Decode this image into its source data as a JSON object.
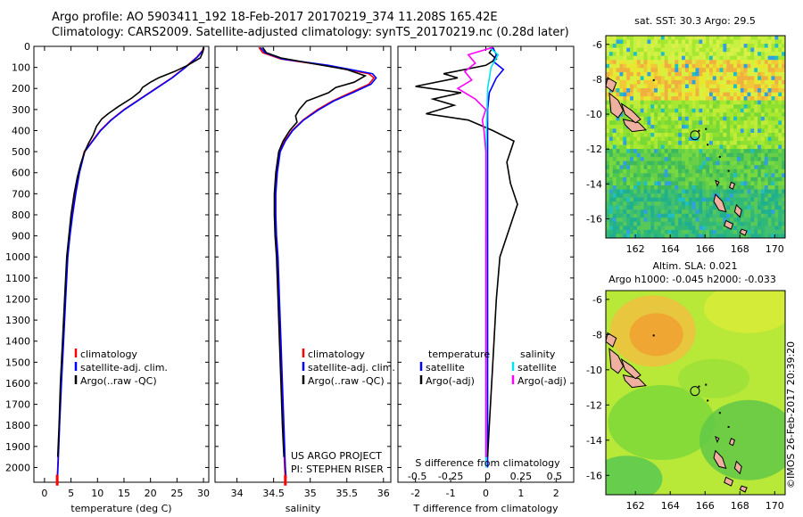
{
  "header": {
    "title_line1": "Argo profile: AO 5903411_192 18-Feb-2017 20170219_374 11.208S 165.42E",
    "title_line2": "Climatology: CARS2009. Satellite-adjusted climatology: synTS_20170219.nc (0.28d later)"
  },
  "stamp": "©IMOS 26-Feb-2017 20:39:20",
  "colors": {
    "climatology": "#ff0000",
    "satellite": "#0000ff",
    "argo": "#000000",
    "salinity_satellite": "#00e5ee",
    "salinity_argo": "#ff00ff"
  },
  "chart_data": [
    {
      "type": "line",
      "xlabel": "temperature (deg C)",
      "xlim": [
        -2,
        31
      ],
      "xticks": [
        0,
        5,
        10,
        15,
        20,
        25,
        30
      ],
      "ylim": [
        2070,
        0
      ],
      "yticks": [
        0,
        100,
        200,
        300,
        400,
        500,
        600,
        700,
        800,
        900,
        1000,
        1100,
        1200,
        1300,
        1400,
        1500,
        1600,
        1700,
        1800,
        1900,
        2000
      ],
      "legend": [
        "climatology",
        "satellite-adj. clim.",
        "Argo(..raw -QC)"
      ],
      "legend_placement": "lower-left",
      "series": [
        {
          "name": "climatology",
          "color": "climatology",
          "points": [
            [
              30,
              5
            ],
            [
              29.8,
              20
            ],
            [
              28.8,
              50
            ],
            [
              26.5,
              100
            ],
            [
              24,
              150
            ],
            [
              21,
              200
            ],
            [
              18,
              250
            ],
            [
              15,
              300
            ],
            [
              12.5,
              350
            ],
            [
              10.5,
              400
            ],
            [
              9,
              450
            ],
            [
              7.5,
              500
            ],
            [
              6.5,
              600
            ],
            [
              5.8,
              700
            ],
            [
              5.2,
              800
            ],
            [
              4.7,
              900
            ],
            [
              4.3,
              1000
            ],
            [
              3.9,
              1200
            ],
            [
              3.5,
              1400
            ],
            [
              3.1,
              1600
            ],
            [
              2.8,
              1800
            ],
            [
              2.5,
              2000
            ],
            [
              2.4,
              2050
            ]
          ]
        },
        {
          "name": "satellite-adj. clim.",
          "color": "satellite",
          "points": [
            [
              30.1,
              5
            ],
            [
              29.9,
              20
            ],
            [
              28.9,
              50
            ],
            [
              26.6,
              100
            ],
            [
              24.1,
              150
            ],
            [
              21.1,
              200
            ],
            [
              18.1,
              250
            ],
            [
              15.1,
              300
            ],
            [
              12.6,
              350
            ],
            [
              10.6,
              400
            ],
            [
              9.1,
              450
            ],
            [
              7.6,
              500
            ],
            [
              6.6,
              600
            ],
            [
              5.9,
              700
            ],
            [
              5.3,
              800
            ],
            [
              4.8,
              900
            ],
            [
              4.4,
              1000
            ],
            [
              4.0,
              1200
            ],
            [
              3.6,
              1400
            ],
            [
              3.2,
              1600
            ],
            [
              2.85,
              1800
            ],
            [
              2.55,
              2000
            ],
            [
              2.45,
              2050
            ]
          ]
        },
        {
          "name": "Argo(..raw -QC)",
          "color": "argo",
          "points": [
            [
              30,
              5
            ],
            [
              29.9,
              25
            ],
            [
              29.4,
              55
            ],
            [
              27,
              90
            ],
            [
              24.5,
              120
            ],
            [
              21.5,
              150
            ],
            [
              20,
              170
            ],
            [
              18.5,
              195
            ],
            [
              18,
              215
            ],
            [
              16.5,
              245
            ],
            [
              14,
              285
            ],
            [
              12,
              320
            ],
            [
              10.8,
              345
            ],
            [
              9.8,
              380
            ],
            [
              9.2,
              420
            ],
            [
              8.3,
              460
            ],
            [
              7.6,
              500
            ],
            [
              6.8,
              560
            ],
            [
              6.2,
              620
            ],
            [
              5.6,
              700
            ],
            [
              5.0,
              800
            ],
            [
              4.6,
              900
            ],
            [
              4.2,
              1000
            ],
            [
              3.8,
              1200
            ],
            [
              3.4,
              1400
            ],
            [
              3.0,
              1600
            ],
            [
              2.75,
              1800
            ],
            [
              2.5,
              1950
            ]
          ]
        }
      ]
    },
    {
      "type": "line",
      "xlabel": "salinity",
      "xlim": [
        33.7,
        36.1
      ],
      "xticks": [
        34,
        34.5,
        35,
        35.5,
        36
      ],
      "xtick_labels": [
        "34",
        "34.5",
        "35",
        "35.5",
        "36"
      ],
      "ylim": [
        2070,
        0
      ],
      "legend": [
        "climatology",
        "satellite-adj. clim.",
        "Argo(..raw -QC)"
      ],
      "legend_placement": "lower-right",
      "annotation": [
        "US ARGO PROJECT",
        "PI: STEPHEN RISER"
      ],
      "series": [
        {
          "name": "climatology",
          "color": "climatology",
          "points": [
            [
              34.3,
              5
            ],
            [
              34.35,
              30
            ],
            [
              34.6,
              60
            ],
            [
              35.2,
              90
            ],
            [
              35.8,
              130
            ],
            [
              35.87,
              150
            ],
            [
              35.8,
              180
            ],
            [
              35.55,
              220
            ],
            [
              35.3,
              260
            ],
            [
              35.1,
              300
            ],
            [
              34.9,
              350
            ],
            [
              34.75,
              400
            ],
            [
              34.65,
              450
            ],
            [
              34.58,
              500
            ],
            [
              34.54,
              600
            ],
            [
              34.52,
              700
            ],
            [
              34.52,
              800
            ],
            [
              34.53,
              900
            ],
            [
              34.55,
              1000
            ],
            [
              34.57,
              1200
            ],
            [
              34.59,
              1400
            ],
            [
              34.61,
              1600
            ],
            [
              34.63,
              1800
            ],
            [
              34.65,
              2000
            ],
            [
              34.66,
              2050
            ]
          ]
        },
        {
          "name": "satellite-adj. clim.",
          "color": "satellite",
          "points": [
            [
              34.32,
              5
            ],
            [
              34.38,
              30
            ],
            [
              34.62,
              60
            ],
            [
              35.25,
              90
            ],
            [
              35.85,
              130
            ],
            [
              35.9,
              150
            ],
            [
              35.83,
              180
            ],
            [
              35.58,
              220
            ],
            [
              35.32,
              260
            ],
            [
              35.12,
              300
            ],
            [
              34.91,
              350
            ],
            [
              34.76,
              400
            ],
            [
              34.66,
              450
            ],
            [
              34.59,
              500
            ],
            [
              34.55,
              600
            ],
            [
              34.53,
              700
            ],
            [
              34.53,
              800
            ],
            [
              34.54,
              900
            ],
            [
              34.56,
              1000
            ],
            [
              34.58,
              1200
            ],
            [
              34.6,
              1400
            ],
            [
              34.62,
              1600
            ],
            [
              34.64,
              1800
            ],
            [
              34.66,
              2000
            ],
            [
              34.67,
              2050
            ]
          ]
        },
        {
          "name": "Argo(..raw -QC)",
          "color": "argo",
          "points": [
            [
              34.35,
              5
            ],
            [
              34.4,
              30
            ],
            [
              34.6,
              55
            ],
            [
              35.0,
              80
            ],
            [
              35.5,
              110
            ],
            [
              35.75,
              140
            ],
            [
              35.6,
              170
            ],
            [
              35.35,
              195
            ],
            [
              35.25,
              220
            ],
            [
              35.1,
              240
            ],
            [
              34.95,
              260
            ],
            [
              34.85,
              300
            ],
            [
              34.8,
              330
            ],
            [
              34.82,
              360
            ],
            [
              34.72,
              400
            ],
            [
              34.63,
              450
            ],
            [
              34.57,
              500
            ],
            [
              34.53,
              600
            ],
            [
              34.51,
              700
            ],
            [
              34.51,
              800
            ],
            [
              34.52,
              900
            ],
            [
              34.54,
              1000
            ],
            [
              34.56,
              1200
            ],
            [
              34.58,
              1400
            ],
            [
              34.6,
              1600
            ],
            [
              34.62,
              1800
            ],
            [
              34.64,
              1950
            ]
          ]
        }
      ]
    },
    {
      "type": "line",
      "xlabel": "T difference from climatology",
      "xlim": [
        -2.5,
        2.5
      ],
      "xticks": [
        -2,
        -1,
        0,
        1,
        2
      ],
      "top_label": "S difference from climatology",
      "top_ticks": [
        "-0.5",
        "-0.25",
        "0",
        "0.25",
        "0.5"
      ],
      "ylim": [
        2070,
        0
      ],
      "legend_groups": [
        {
          "title": "temperature",
          "items": [
            "satellite",
            "Argo(-adj)"
          ]
        },
        {
          "title": "salinity",
          "items": [
            "satellite",
            "Argo(-adj)"
          ]
        }
      ],
      "series": [
        {
          "name": "temperature satellite",
          "color": "satellite",
          "points": [
            [
              0.2,
              5
            ],
            [
              0.3,
              40
            ],
            [
              0.2,
              70
            ],
            [
              0.5,
              110
            ],
            [
              0.3,
              150
            ],
            [
              0.1,
              220
            ],
            [
              0.05,
              300
            ],
            [
              0.05,
              500
            ],
            [
              0.05,
              1000
            ],
            [
              0.05,
              2000
            ]
          ]
        },
        {
          "name": "temperature Argo(-adj)",
          "color": "argo",
          "points": [
            [
              0.2,
              5
            ],
            [
              0.1,
              30
            ],
            [
              0.3,
              60
            ],
            [
              0,
              90
            ],
            [
              -1.2,
              130
            ],
            [
              -0.8,
              150
            ],
            [
              -2.0,
              190
            ],
            [
              -0.7,
              220
            ],
            [
              -1.5,
              250
            ],
            [
              -0.9,
              280
            ],
            [
              -1.7,
              320
            ],
            [
              -0.5,
              350
            ],
            [
              0.2,
              400
            ],
            [
              0.8,
              450
            ],
            [
              0.6,
              550
            ],
            [
              0.7,
              650
            ],
            [
              0.9,
              750
            ],
            [
              0.4,
              1000
            ],
            [
              0.3,
              1200
            ],
            [
              0.2,
              1500
            ],
            [
              0.1,
              1800
            ],
            [
              0.05,
              1950
            ]
          ]
        },
        {
          "name": "salinity satellite",
          "color": "salinity_satellite",
          "points": [
            [
              0.1,
              5
            ],
            [
              0.35,
              40
            ],
            [
              0.15,
              100
            ],
            [
              0.05,
              200
            ],
            [
              0.02,
              400
            ],
            [
              0.0,
              1000
            ],
            [
              0.0,
              2000
            ]
          ]
        },
        {
          "name": "salinity Argo(-adj)",
          "color": "salinity_argo",
          "points": [
            [
              0.2,
              5
            ],
            [
              -0.5,
              40
            ],
            [
              -0.3,
              80
            ],
            [
              -0.6,
              120
            ],
            [
              -0.4,
              160
            ],
            [
              -0.8,
              200
            ],
            [
              -0.3,
              250
            ],
            [
              0,
              300
            ],
            [
              -0.1,
              350
            ],
            [
              -0.05,
              400
            ],
            [
              0,
              500
            ],
            [
              0,
              1000
            ],
            [
              0,
              1950
            ]
          ]
        }
      ]
    },
    {
      "type": "heatmap",
      "title": "sat. SST: 30.3  Argo: 29.5",
      "xticks": [
        "162",
        "164",
        "166",
        "168",
        "170"
      ],
      "yticks": [
        "-6",
        "-8",
        "-10",
        "-12",
        "-14",
        "-16"
      ],
      "marker": {
        "lon": 165.42,
        "lat": -11.208
      }
    },
    {
      "type": "heatmap",
      "title": "Altim. SLA: 0.021",
      "subtitle": "Argo h1000: -0.045 h2000: -0.033",
      "xticks": [
        "162",
        "164",
        "166",
        "168",
        "170"
      ],
      "yticks": [
        "-6",
        "-8",
        "-10",
        "-12",
        "-14",
        "-16"
      ],
      "marker": {
        "lon": 165.42,
        "lat": -11.208
      }
    }
  ]
}
